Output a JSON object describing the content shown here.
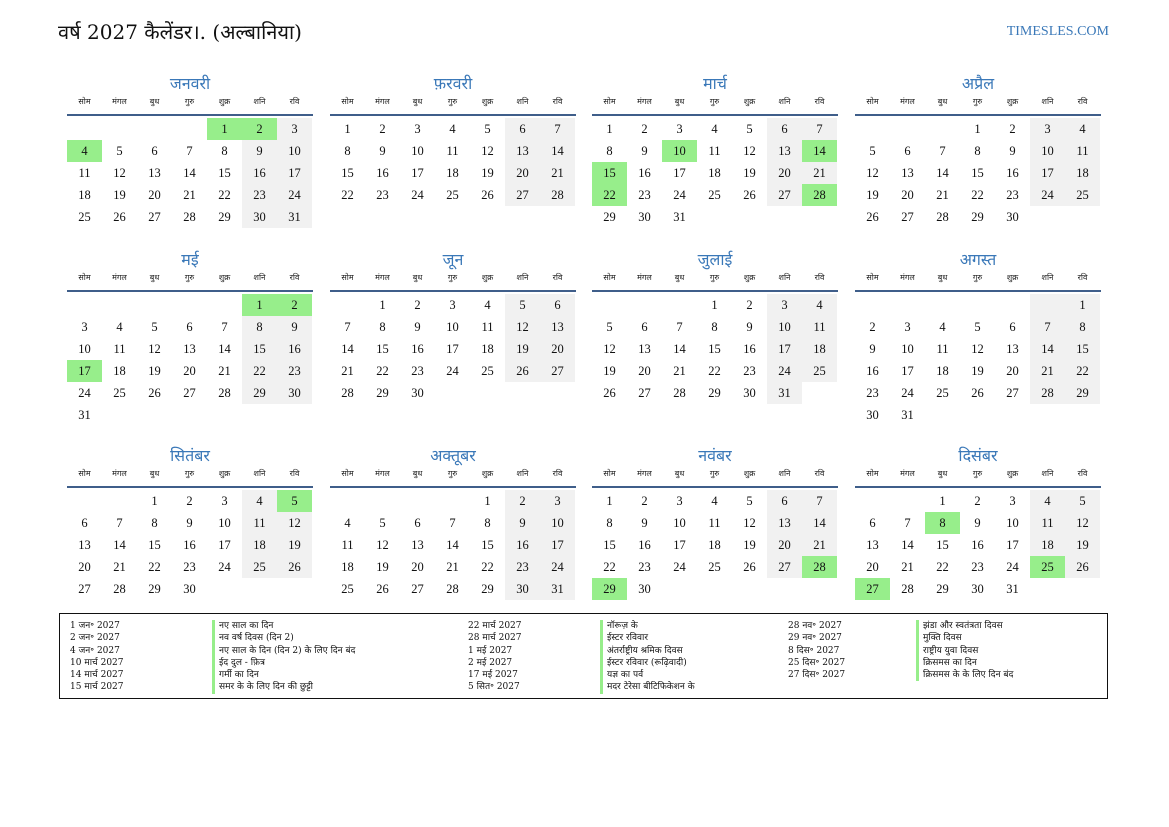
{
  "header": {
    "title": "वर्ष 2027 कैलेंडर।. (अल्बानिया)",
    "site": "TIMESLES.COM"
  },
  "weekdays": [
    "सोम",
    "मंगल",
    "बुध",
    "गुरु",
    "शुक्र",
    "शनि",
    "रवि"
  ],
  "months": [
    {
      "name": "जनवरी",
      "offset": 4,
      "days": 31,
      "holidays": [
        1,
        2,
        4
      ]
    },
    {
      "name": "फ़रवरी",
      "offset": 0,
      "days": 28,
      "holidays": []
    },
    {
      "name": "मार्च",
      "offset": 0,
      "days": 31,
      "holidays": [
        10,
        14,
        15,
        22,
        28
      ]
    },
    {
      "name": "अप्रैल",
      "offset": 3,
      "days": 30,
      "holidays": []
    },
    {
      "name": "मई",
      "offset": 5,
      "days": 31,
      "holidays": [
        1,
        2,
        17
      ]
    },
    {
      "name": "जून",
      "offset": 1,
      "days": 30,
      "holidays": []
    },
    {
      "name": "जुलाई",
      "offset": 3,
      "days": 31,
      "holidays": []
    },
    {
      "name": "अगस्त",
      "offset": 6,
      "days": 31,
      "holidays": []
    },
    {
      "name": "सितंबर",
      "offset": 2,
      "days": 30,
      "holidays": [
        5
      ]
    },
    {
      "name": "अक्तूबर",
      "offset": 4,
      "days": 31,
      "holidays": []
    },
    {
      "name": "नवंबर",
      "offset": 0,
      "days": 30,
      "holidays": [
        28,
        29
      ]
    },
    {
      "name": "दिसंबर",
      "offset": 2,
      "days": 31,
      "holidays": [
        8,
        25,
        27
      ]
    }
  ],
  "legend": [
    [
      {
        "date": "1 जन॰ 2027",
        "name": "नए साल का दिन"
      },
      {
        "date": "2 जन॰ 2027",
        "name": "नव वर्ष दिवस (दिन 2)"
      },
      {
        "date": "4 जन॰ 2027",
        "name": "नए साल के दिन (दिन 2) के लिए दिन बंद"
      },
      {
        "date": "10 मार्च 2027",
        "name": "ईद दुल - फ़ित्र"
      },
      {
        "date": "14 मार्च 2027",
        "name": "गर्मी का दिन"
      },
      {
        "date": "15 मार्च 2027",
        "name": "समर के के लिए दिन की छुट्टी"
      }
    ],
    [
      {
        "date": "22 मार्च 2027",
        "name": "नॉरूज़ के"
      },
      {
        "date": "28 मार्च 2027",
        "name": "ईस्टर रविवार"
      },
      {
        "date": "1 मई 2027",
        "name": "अंतर्राष्ट्रीय श्रमिक दिवस"
      },
      {
        "date": "2 मई 2027",
        "name": "ईस्टर रविवार (रूढ़िवादी)"
      },
      {
        "date": "17 मई 2027",
        "name": "यज्ञ का पर्व"
      },
      {
        "date": "5 सित॰ 2027",
        "name": "मदर टेरेसा बीटिफिकेशन के"
      }
    ],
    [
      {
        "date": "28 नव॰ 2027",
        "name": "झंडा और स्वतंत्रता दिवस"
      },
      {
        "date": "29 नव॰ 2027",
        "name": "मुक्ति दिवस"
      },
      {
        "date": "8 दिस॰ 2027",
        "name": "राष्ट्रीय युवा दिवस"
      },
      {
        "date": "25 दिस॰ 2027",
        "name": "क्रिसमस का दिन"
      },
      {
        "date": "27 दिस॰ 2027",
        "name": "क्रिसमस के के लिए दिन बंद"
      }
    ]
  ]
}
